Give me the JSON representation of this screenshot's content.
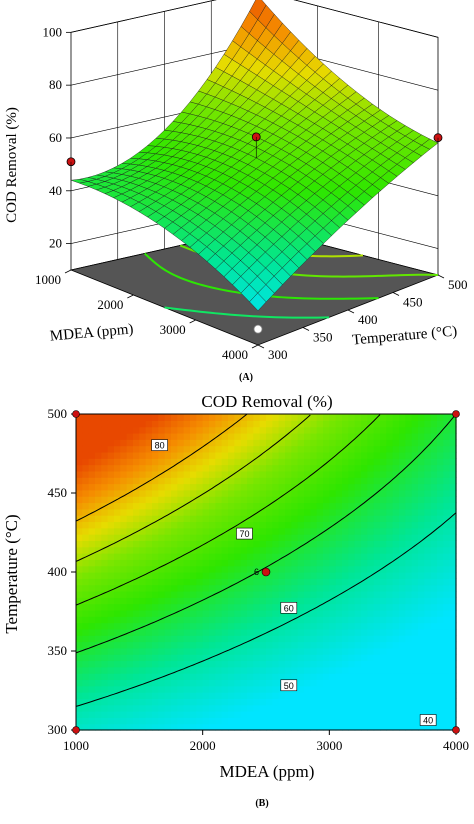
{
  "panel_labels": {
    "a": "(A)",
    "b": "(B)"
  },
  "colors": {
    "low": "#00e5ff",
    "mid": "#2ee600",
    "high": "#e84800",
    "floor": "#555555",
    "design_point": "#cc1111"
  },
  "chart_data": [
    {
      "type": "surface",
      "xlabel": "MDEA (ppm)",
      "ylabel": "Temperature (°C)",
      "zlabel": "COD Removal (%)",
      "xlim": [
        1000,
        4000
      ],
      "ylim": [
        300,
        500
      ],
      "zlim": [
        10,
        100
      ],
      "x_ticks": [
        "1000",
        "2000",
        "3000",
        "4000"
      ],
      "y_ticks": [
        "300",
        "350",
        "400",
        "450",
        "500"
      ],
      "z_ticks": [
        "20",
        "40",
        "60",
        "80",
        "100"
      ],
      "surface_grid": {
        "x": [
          1000,
          2500,
          4000
        ],
        "y": [
          300,
          400,
          500
        ],
        "z": [
          [
            44,
            55,
            98
          ],
          [
            40,
            56,
            73
          ],
          [
            23,
            44,
            60
          ]
        ]
      },
      "design_points": [
        {
          "x": 1000,
          "y": 300,
          "z": 51
        },
        {
          "x": 1000,
          "y": 500,
          "z": 100
        },
        {
          "x": 4000,
          "y": 500,
          "z": 62
        },
        {
          "x": 2500,
          "y": 400,
          "z": 64
        },
        {
          "x": 4000,
          "y": 300,
          "z": 16
        }
      ]
    },
    {
      "type": "contour",
      "title": "COD Removal (%)",
      "xlabel": "MDEA (ppm)",
      "ylabel": "Temperature (°C)",
      "xlim": [
        1000,
        4000
      ],
      "ylim": [
        300,
        500
      ],
      "x_ticks": [
        "1000",
        "2000",
        "3000",
        "4000"
      ],
      "y_ticks": [
        "300",
        "350",
        "400",
        "450",
        "500"
      ],
      "levels": [
        40,
        50,
        60,
        70,
        80
      ],
      "contour_labels": [
        {
          "text": "80",
          "x": 1660,
          "y": 480
        },
        {
          "text": "70",
          "x": 2330,
          "y": 424
        },
        {
          "text": "60",
          "x": 2680,
          "y": 377
        },
        {
          "text": "50",
          "x": 2680,
          "y": 328
        },
        {
          "text": "40",
          "x": 3780,
          "y": 306
        }
      ],
      "center_point": {
        "x": 2500,
        "y": 400,
        "label": "6"
      },
      "corner_points": [
        {
          "x": 1000,
          "y": 300
        },
        {
          "x": 1000,
          "y": 500
        },
        {
          "x": 4000,
          "y": 300
        },
        {
          "x": 4000,
          "y": 500
        }
      ]
    }
  ]
}
